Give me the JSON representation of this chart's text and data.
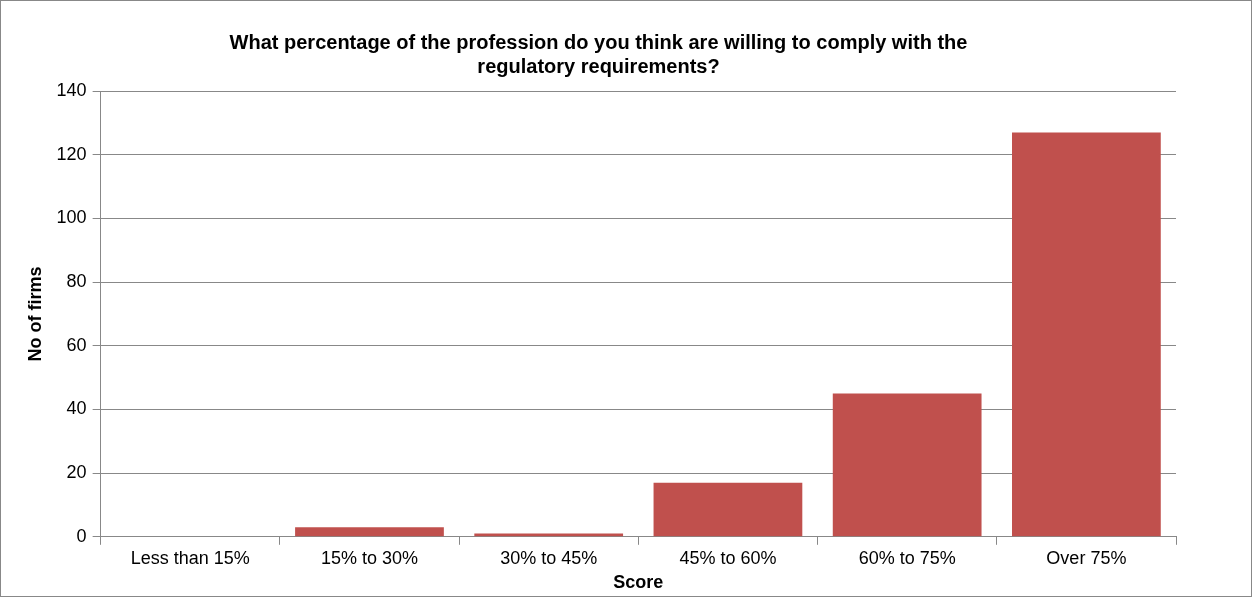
{
  "chart_data": {
    "type": "bar",
    "title": "What percentage of the profession do you think are willing to comply with the regulatory requirements?",
    "xlabel": "Score",
    "ylabel": "No of firms",
    "categories": [
      "Less than 15%",
      "15% to 30%",
      "30% to 45%",
      "45% to 60%",
      "60% to 75%",
      "Over 75%"
    ],
    "values": [
      0,
      3,
      1,
      17,
      45,
      127
    ],
    "color": "#c0504d",
    "ylim": [
      0,
      140
    ],
    "yticks": [
      0,
      20,
      40,
      60,
      80,
      100,
      120,
      140
    ],
    "grid": "y"
  }
}
